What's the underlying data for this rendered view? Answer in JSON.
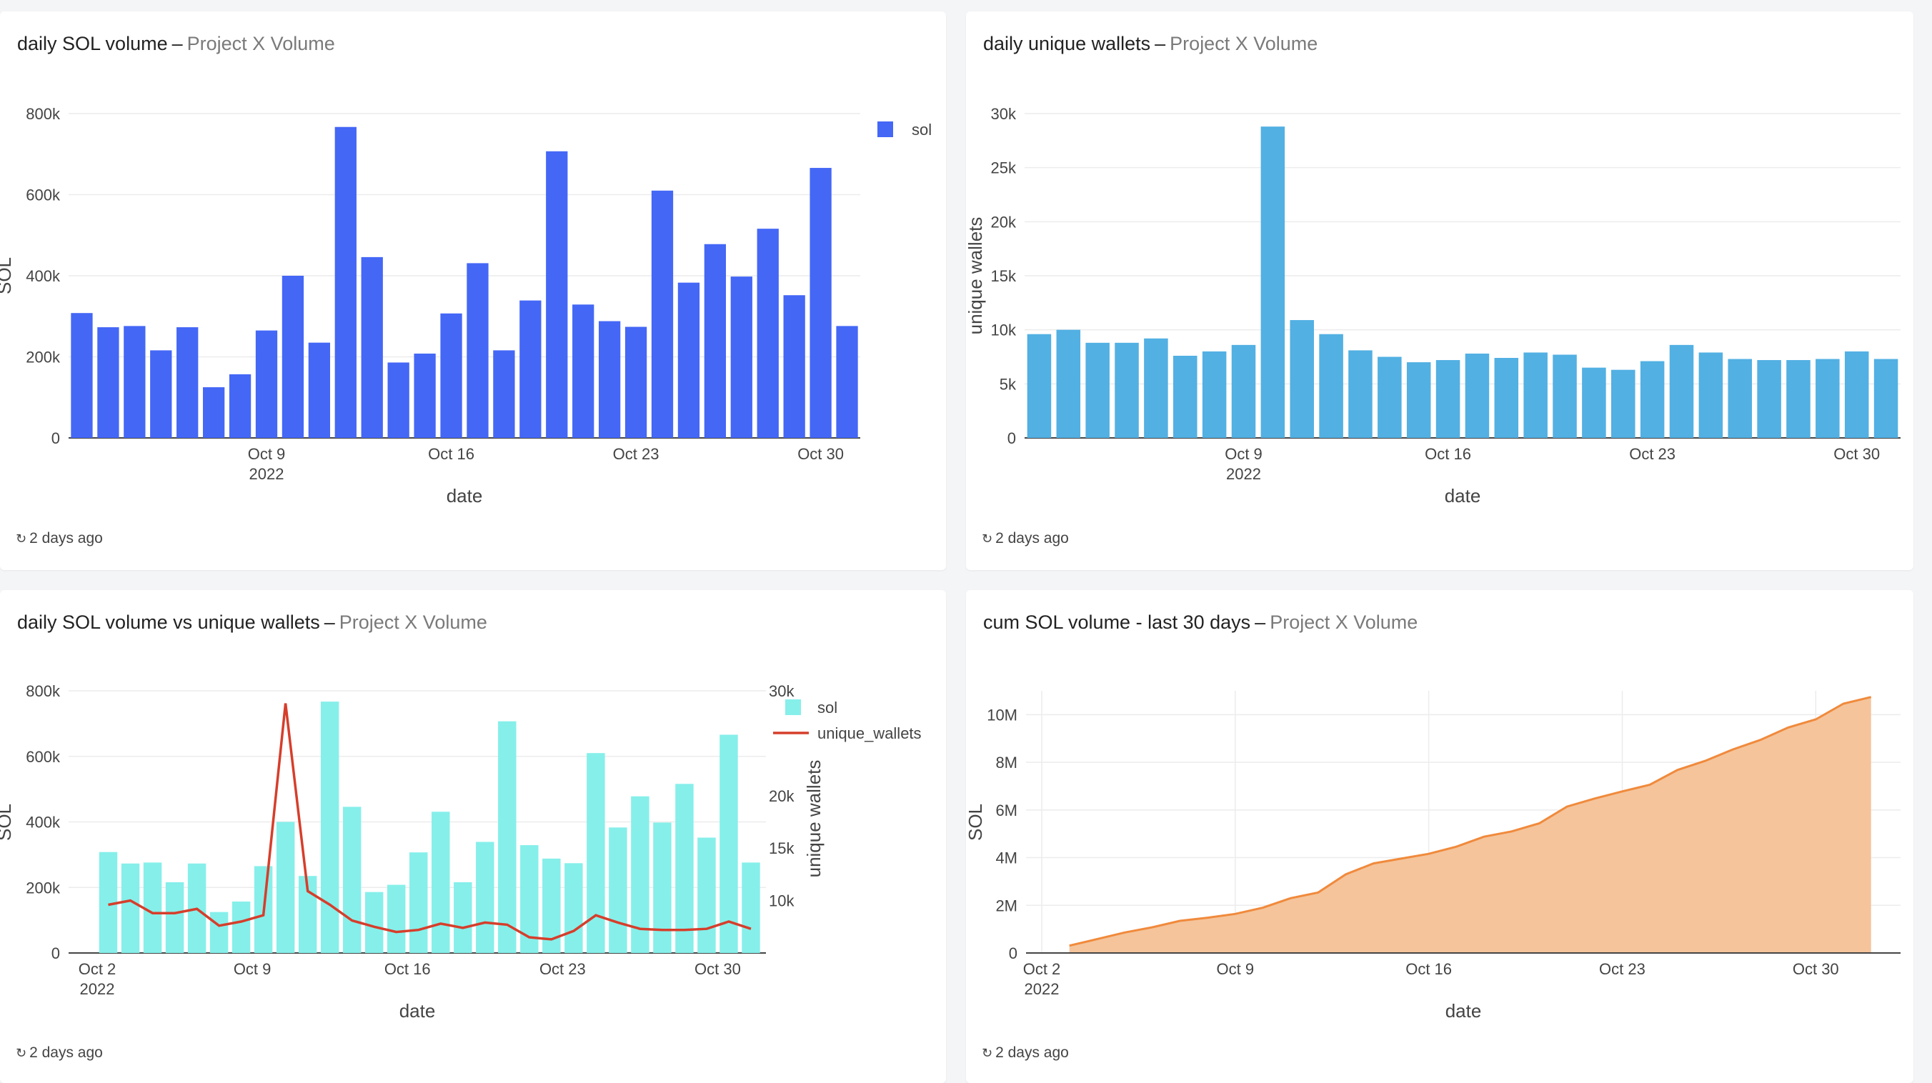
{
  "panels": [
    {
      "title": "daily SOL volume",
      "project": "Project X Volume",
      "refresh": "2 days ago"
    },
    {
      "title": "daily unique wallets",
      "project": "Project X Volume",
      "refresh": "2 days ago"
    },
    {
      "title": "daily SOL volume vs unique wallets",
      "project": "Project X Volume",
      "refresh": "2 days ago"
    },
    {
      "title": "cum SOL volume - last 30 days",
      "project": "Project X Volume",
      "refresh": "2 days ago"
    }
  ],
  "chart_data": [
    {
      "type": "bar",
      "xlabel": "date",
      "ylabel": "SOL",
      "ylim": [
        0,
        800000
      ],
      "yticks": [
        0,
        200000,
        400000,
        600000,
        800000
      ],
      "ytick_labels": [
        "0",
        "200k",
        "400k",
        "600k",
        "800k"
      ],
      "xticks": [
        "Oct 9\n2022",
        "Oct 16",
        "Oct 23",
        "Oct 30"
      ],
      "legend": "top-right",
      "color": "#4467f6",
      "grid": true,
      "series": [
        {
          "name": "sol",
          "values": [
            308000,
            273000,
            276000,
            216000,
            273000,
            125000,
            157000,
            265000,
            400000,
            235000,
            767000,
            446000,
            186000,
            208000,
            307000,
            431000,
            216000,
            339000,
            707000,
            329000,
            288000,
            274000,
            610000,
            383000,
            478000,
            398000,
            516000,
            352000,
            666000,
            276000
          ]
        }
      ]
    },
    {
      "type": "bar",
      "xlabel": "date",
      "ylabel": "unique wallets",
      "ylim": [
        0,
        30000
      ],
      "yticks": [
        0,
        5000,
        10000,
        15000,
        20000,
        25000,
        30000
      ],
      "ytick_labels": [
        "0",
        "5k",
        "10k",
        "15k",
        "20k",
        "25k",
        "30k"
      ],
      "xticks": [
        "Oct 9\n2022",
        "Oct 16",
        "Oct 23",
        "Oct 30"
      ],
      "color": "#52b0e3",
      "grid": true,
      "series": [
        {
          "name": "unique wallets",
          "values": [
            9600,
            10000,
            8800,
            8800,
            9200,
            7600,
            8000,
            8600,
            28800,
            10900,
            9600,
            8100,
            7500,
            7000,
            7200,
            7800,
            7400,
            7900,
            7700,
            6500,
            6300,
            7100,
            8600,
            7900,
            7300,
            7200,
            7200,
            7300,
            8000,
            7300
          ]
        }
      ]
    },
    {
      "type": "bar",
      "xlabel": "date",
      "ylabel": "SOL",
      "y2label": "unique wallets",
      "ylim": [
        0,
        800000
      ],
      "y2lim": [
        5000,
        30000
      ],
      "yticks": [
        0,
        200000,
        400000,
        600000,
        800000
      ],
      "ytick_labels": [
        "0",
        "200k",
        "400k",
        "600k",
        "800k"
      ],
      "y2ticks": [
        10000,
        15000,
        20000
      ],
      "y2tick_labels": [
        "10k",
        "15k",
        "20k"
      ],
      "y2top_label": "30k",
      "xticks": [
        "Oct 2\n2022",
        "Oct 9",
        "Oct 16",
        "Oct 23",
        "Oct 30"
      ],
      "legend": "top-right",
      "grid": true,
      "series": [
        {
          "name": "sol",
          "type": "bar",
          "color": "#86efea",
          "values": [
            308000,
            273000,
            276000,
            216000,
            273000,
            125000,
            157000,
            265000,
            400000,
            235000,
            767000,
            446000,
            186000,
            208000,
            307000,
            431000,
            216000,
            339000,
            707000,
            329000,
            288000,
            274000,
            610000,
            383000,
            478000,
            398000,
            516000,
            352000,
            666000,
            276000
          ]
        },
        {
          "name": "unique_wallets",
          "type": "line",
          "color": "#d63e2b",
          "values": [
            9600,
            10000,
            8800,
            8800,
            9200,
            7600,
            8000,
            8600,
            28800,
            10900,
            9600,
            8100,
            7500,
            7000,
            7200,
            7800,
            7400,
            7900,
            7700,
            6500,
            6300,
            7100,
            8600,
            7900,
            7300,
            7200,
            7200,
            7300,
            8000,
            7300
          ]
        }
      ]
    },
    {
      "type": "area",
      "xlabel": "date",
      "ylabel": "SOL",
      "ylim": [
        0,
        11000000
      ],
      "yticks": [
        0,
        2000000,
        4000000,
        6000000,
        8000000,
        10000000
      ],
      "ytick_labels": [
        "0",
        "2M",
        "4M",
        "6M",
        "8M",
        "10M"
      ],
      "xticks": [
        "Oct 2\n2022",
        "Oct 9",
        "Oct 16",
        "Oct 23",
        "Oct 30"
      ],
      "color": "#f08a3c",
      "fill": "#f5c49b",
      "grid": true,
      "series": [
        {
          "name": "SOL",
          "values": [
            310000,
            580000,
            860000,
            1080000,
            1350000,
            1480000,
            1640000,
            1900000,
            2300000,
            2540000,
            3300000,
            3760000,
            3960000,
            4160000,
            4460000,
            4880000,
            5100000,
            5440000,
            6140000,
            6480000,
            6780000,
            7060000,
            7680000,
            8060000,
            8540000,
            8940000,
            9460000,
            9800000,
            10460000,
            10740000
          ]
        }
      ]
    }
  ]
}
